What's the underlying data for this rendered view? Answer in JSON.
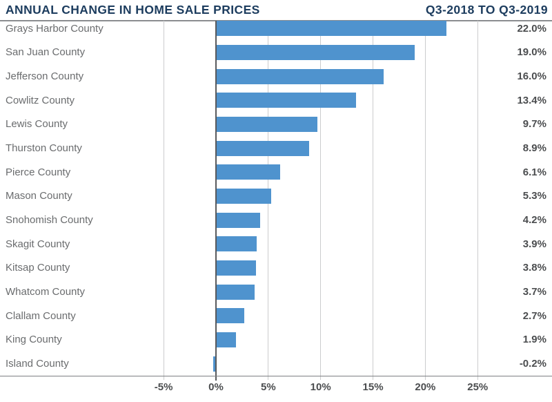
{
  "header": {
    "title": "ANNUAL CHANGE IN HOME SALE PRICES",
    "period": "Q3-2018 TO Q3-2019"
  },
  "colors": {
    "bar": "#4f93ce",
    "title_text": "#1c3c5e",
    "category_label": "#6a6c6e",
    "value_label": "#4b4d4f",
    "gridline": "#cbcccd",
    "zero_line": "#58595c",
    "axis_line": "#7d7f82"
  },
  "chart_data": {
    "type": "bar",
    "orientation": "horizontal",
    "title": "ANNUAL CHANGE IN HOME SALE PRICES",
    "subtitle": "Q3-2018 TO Q3-2019",
    "categories": [
      "Grays Harbor County",
      "San Juan County",
      "Jefferson County",
      "Cowlitz County",
      "Lewis County",
      "Thurston County",
      "Pierce County",
      "Mason County",
      "Snohomish County",
      "Skagit County",
      "Kitsap County",
      "Whatcom County",
      "Clallam County",
      "King County",
      "Island County"
    ],
    "values": [
      22.0,
      19.0,
      16.0,
      13.4,
      9.7,
      8.9,
      6.1,
      5.3,
      4.2,
      3.9,
      3.8,
      3.7,
      2.7,
      1.9,
      -0.2
    ],
    "value_labels": [
      "22.0%",
      "19.0%",
      "16.0%",
      "13.4%",
      "9.7%",
      "8.9%",
      "6.1%",
      "5.3%",
      "4.2%",
      "3.9%",
      "3.8%",
      "3.7%",
      "2.7%",
      "1.9%",
      "-0.2%"
    ],
    "xlabel": "",
    "ylabel": "",
    "x_ticks": [
      -5,
      0,
      5,
      10,
      15,
      20,
      25
    ],
    "x_tick_labels": [
      "-5%",
      "0%",
      "5%",
      "10%",
      "15%",
      "20%",
      "25%"
    ],
    "xlim": [
      -5,
      25
    ],
    "grid": "vertical",
    "legend": "none"
  }
}
